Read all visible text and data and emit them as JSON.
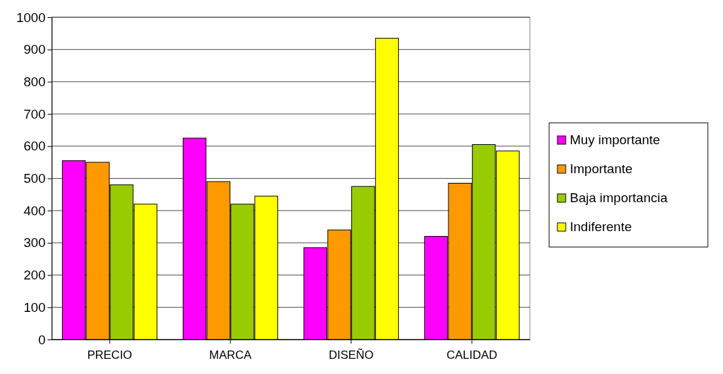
{
  "chart_data": {
    "type": "bar",
    "categories": [
      "PRECIO",
      "MARCA",
      "DISEÑO",
      "CALIDAD"
    ],
    "series": [
      {
        "name": "Muy importante",
        "color": "#ff00ff",
        "values": [
          555,
          625,
          285,
          320
        ]
      },
      {
        "name": "Importante",
        "color": "#ff9900",
        "values": [
          550,
          490,
          340,
          485
        ]
      },
      {
        "name": "Baja importancia",
        "color": "#99cc00",
        "values": [
          480,
          420,
          475,
          605
        ]
      },
      {
        "name": "Indiferente",
        "color": "#ffff00",
        "values": [
          420,
          445,
          935,
          585
        ]
      }
    ],
    "ylim": [
      0,
      1000
    ],
    "yticks": [
      0,
      100,
      200,
      300,
      400,
      500,
      600,
      700,
      800,
      900,
      1000
    ],
    "grid": "y",
    "legend": "right"
  }
}
